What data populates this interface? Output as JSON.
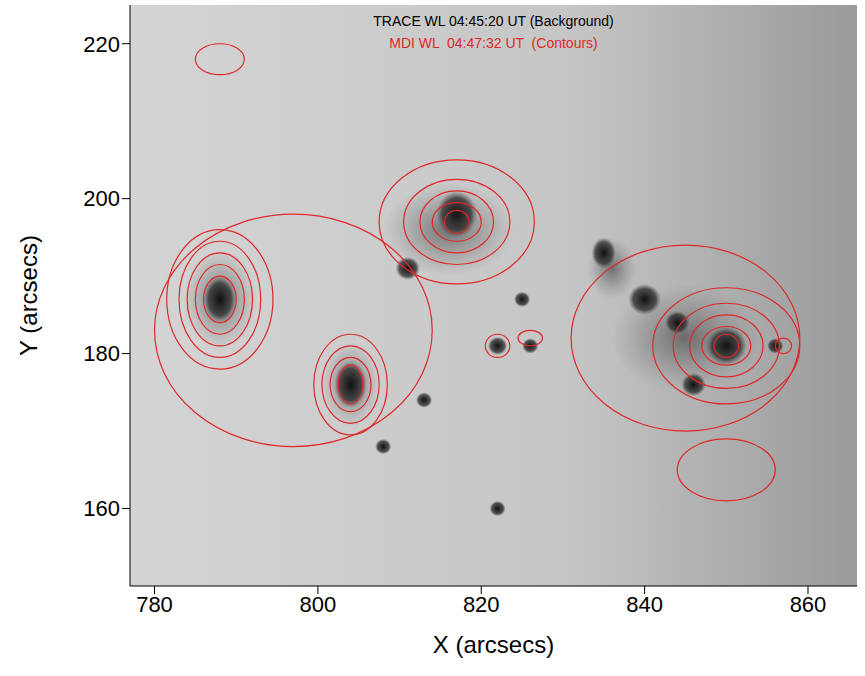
{
  "chart_data": {
    "type": "contour",
    "title": "TRACE WL 04:45:20 UT (Background)",
    "subtitle": "MDI WL  04:47:32 UT  (Contours)",
    "x_label": "X (arcsecs)",
    "y_label": "Y (arcsecs)",
    "xlim": [
      777,
      866
    ],
    "ylim": [
      150,
      225
    ],
    "xticks": [
      780,
      800,
      820,
      840,
      860
    ],
    "yticks": [
      160,
      180,
      200,
      220
    ],
    "color": "#e02828",
    "penumbrae": [
      {
        "x": 788,
        "y": 187,
        "rx": 4.5,
        "ry": 6.5
      },
      {
        "x": 804,
        "y": 176,
        "rx": 3.5,
        "ry": 5.5
      },
      {
        "x": 816,
        "y": 196,
        "rx": 8,
        "ry": 6
      },
      {
        "x": 845,
        "y": 182,
        "rx": 9,
        "ry": 7
      },
      {
        "x": 836,
        "y": 191,
        "rx": 3,
        "ry": 4
      }
    ],
    "umbrae": [
      {
        "x": 788,
        "y": 187,
        "rx": 2,
        "ry": 3
      },
      {
        "x": 804,
        "y": 176,
        "rx": 2,
        "ry": 3
      },
      {
        "x": 817,
        "y": 198,
        "rx": 2.5,
        "ry": 3
      },
      {
        "x": 811,
        "y": 191,
        "rx": 1.5,
        "ry": 1.5
      },
      {
        "x": 850,
        "y": 181,
        "rx": 2.5,
        "ry": 2.5
      },
      {
        "x": 835,
        "y": 193,
        "rx": 1.5,
        "ry": 2
      },
      {
        "x": 840,
        "y": 187,
        "rx": 2,
        "ry": 2
      },
      {
        "x": 844,
        "y": 184,
        "rx": 1.5,
        "ry": 1.5
      },
      {
        "x": 846,
        "y": 176,
        "rx": 1.5,
        "ry": 1.5
      },
      {
        "x": 856,
        "y": 181,
        "rx": 1,
        "ry": 1
      },
      {
        "x": 825,
        "y": 187,
        "rx": 1,
        "ry": 1
      },
      {
        "x": 822,
        "y": 181,
        "rx": 1.2,
        "ry": 1.2
      },
      {
        "x": 826,
        "y": 181,
        "rx": 1,
        "ry": 1
      },
      {
        "x": 813,
        "y": 174,
        "rx": 1,
        "ry": 1
      },
      {
        "x": 808,
        "y": 168,
        "rx": 1,
        "ry": 1
      },
      {
        "x": 822,
        "y": 160,
        "rx": 1,
        "ry": 1
      }
    ],
    "contours": [
      {
        "x": 788,
        "y": 187,
        "rx": [
          2,
          3,
          4,
          5,
          6.5
        ],
        "ry": [
          3,
          4.5,
          6,
          7.5,
          9
        ]
      },
      {
        "x": 804,
        "y": 176,
        "rx": [
          1.5,
          2.5,
          3.5,
          4.5
        ],
        "ry": [
          2.5,
          3.5,
          5,
          6.5
        ]
      },
      {
        "x": 817,
        "y": 197,
        "rx": [
          1.5,
          3,
          4.5,
          6.5,
          9.5
        ],
        "ry": [
          1.5,
          2.5,
          4,
          5.5,
          8
        ]
      },
      {
        "x": 850,
        "y": 181,
        "rx": [
          1.5,
          3,
          4.5,
          6.5,
          9
        ],
        "ry": [
          1.5,
          2.5,
          4,
          5.5,
          7.5
        ]
      },
      {
        "x": 845,
        "y": 182,
        "rx": [
          14
        ],
        "ry": [
          12
        ]
      },
      {
        "x": 797,
        "y": 183,
        "rx": [
          17
        ],
        "ry": [
          15
        ]
      },
      {
        "x": 822,
        "y": 181,
        "rx": [
          1.5
        ],
        "ry": [
          1.5
        ]
      },
      {
        "x": 826,
        "y": 182,
        "rx": [
          1.5
        ],
        "ry": [
          1
        ]
      },
      {
        "x": 857,
        "y": 181,
        "rx": [
          1
        ],
        "ry": [
          1
        ]
      },
      {
        "x": 850,
        "y": 165,
        "rx": [
          6
        ],
        "ry": [
          4
        ]
      },
      {
        "x": 788,
        "y": 218,
        "rx": [
          3
        ],
        "ry": [
          2
        ]
      }
    ]
  }
}
